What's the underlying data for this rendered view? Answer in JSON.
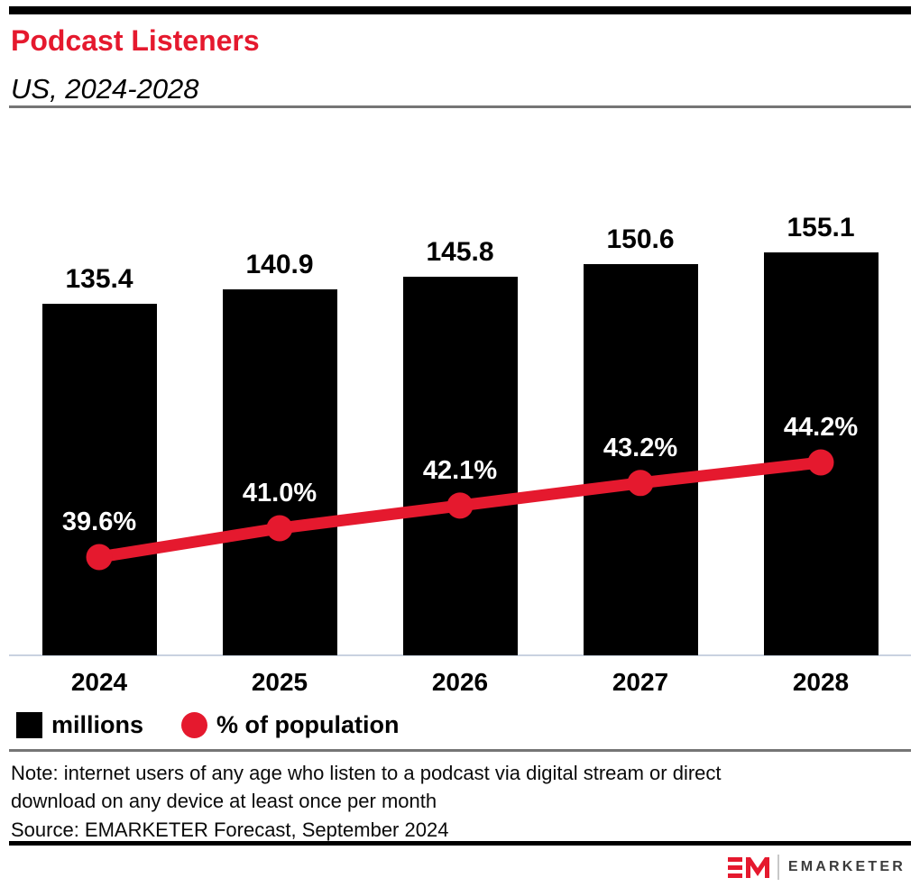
{
  "chart_data": {
    "type": "bar+line",
    "title": "Podcast Listeners",
    "subtitle": "US, 2024-2028",
    "categories": [
      "2024",
      "2025",
      "2026",
      "2027",
      "2028"
    ],
    "series": [
      {
        "name": "millions",
        "type": "bar",
        "color": "#000000",
        "values": [
          135.4,
          140.9,
          145.8,
          150.6,
          155.1
        ],
        "labels": [
          "135.4",
          "140.9",
          "145.8",
          "150.6",
          "155.1"
        ]
      },
      {
        "name": "% of population",
        "type": "line",
        "color": "#E5192E",
        "values": [
          39.6,
          41.0,
          42.1,
          43.2,
          44.2
        ],
        "labels": [
          "39.6%",
          "41.0%",
          "42.1%",
          "43.2%",
          "44.2%"
        ]
      }
    ],
    "xlabel": "",
    "ylabel": "",
    "bar_axis_range": [
      0,
      160
    ],
    "line_axis_range": [
      35,
      48
    ],
    "gridlines": false,
    "axes_hidden": true,
    "value_labels_shown": true,
    "legend_position": "bottom-left"
  },
  "legend": {
    "items": [
      {
        "label": "millions",
        "marker": "square-swatch",
        "color": "#000000"
      },
      {
        "label": "% of population",
        "marker": "circle-swatch",
        "color": "#E5192E"
      }
    ]
  },
  "note": "Note: internet users of any age who listen to a podcast via digital stream or direct download on any device at least once per month",
  "source": "Source: EMARKETER Forecast, September 2024",
  "footer": {
    "brand": "EMARKETER",
    "logo": "em-monogram-icon"
  },
  "colors": {
    "accent_red": "#E5192E",
    "bar_black": "#000000",
    "axis_line": "#C9D2E0",
    "divider_gray": "#757575",
    "brand_text": "#3B3B3B"
  }
}
